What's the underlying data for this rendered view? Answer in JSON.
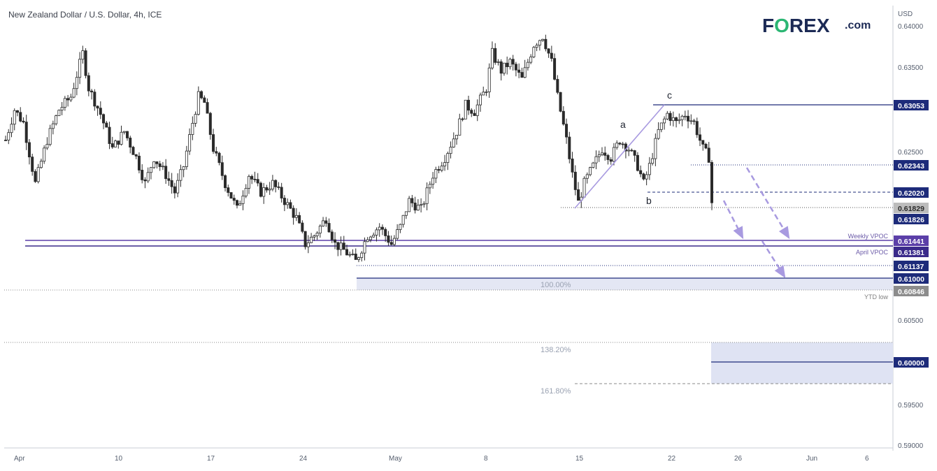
{
  "chart_data": {
    "type": "candlestick",
    "title": "New Zealand Dollar / U.S. Dollar, 4h, ICE",
    "currency": "USD",
    "brand": {
      "logo": "FOREX",
      "suffix": ".com",
      "accent_color": "#2bb673",
      "text_color": "#1c2a55"
    },
    "y_range": [
      0.59,
      0.641
    ],
    "y_ticks": [
      "0.64000",
      "0.63500",
      "0.62500",
      "0.60500",
      "0.59500",
      "0.59000"
    ],
    "x_ticks": [
      "Apr",
      "10",
      "17",
      "24",
      "May",
      "8",
      "15",
      "22",
      "26",
      "Jun",
      "6"
    ],
    "price_path": [
      [
        0,
        0.6255
      ],
      [
        3,
        0.629
      ],
      [
        6,
        0.6275
      ],
      [
        10,
        0.6205
      ],
      [
        14,
        0.6255
      ],
      [
        18,
        0.629
      ],
      [
        22,
        0.6305
      ],
      [
        26,
        0.6355
      ],
      [
        28,
        0.6315
      ],
      [
        32,
        0.6285
      ],
      [
        36,
        0.6245
      ],
      [
        40,
        0.6265
      ],
      [
        44,
        0.6235
      ],
      [
        47,
        0.6205
      ],
      [
        50,
        0.6235
      ],
      [
        54,
        0.6215
      ],
      [
        57,
        0.6195
      ],
      [
        60,
        0.6225
      ],
      [
        63,
        0.6275
      ],
      [
        65,
        0.6305
      ],
      [
        67,
        0.6298
      ],
      [
        70,
        0.6245
      ],
      [
        74,
        0.6205
      ],
      [
        78,
        0.6175
      ],
      [
        82,
        0.6215
      ],
      [
        86,
        0.6195
      ],
      [
        90,
        0.6205
      ],
      [
        94,
        0.6185
      ],
      [
        98,
        0.6165
      ],
      [
        101,
        0.6135
      ],
      [
        104,
        0.6145
      ],
      [
        108,
        0.6165
      ],
      [
        111,
        0.6135
      ],
      [
        114,
        0.6128
      ],
      [
        118,
        0.6115
      ],
      [
        122,
        0.6145
      ],
      [
        126,
        0.6155
      ],
      [
        130,
        0.6135
      ],
      [
        133,
        0.6155
      ],
      [
        136,
        0.6185
      ],
      [
        140,
        0.6175
      ],
      [
        144,
        0.6215
      ],
      [
        148,
        0.6235
      ],
      [
        152,
        0.6265
      ],
      [
        155,
        0.6295
      ],
      [
        158,
        0.6288
      ],
      [
        162,
        0.6315
      ],
      [
        164,
        0.6355
      ],
      [
        167,
        0.6335
      ],
      [
        170,
        0.6345
      ],
      [
        174,
        0.6325
      ],
      [
        178,
        0.6365
      ],
      [
        181,
        0.6375
      ],
      [
        184,
        0.6345
      ],
      [
        186,
        0.6305
      ],
      [
        189,
        0.6255
      ],
      [
        191,
        0.6215
      ],
      [
        193,
        0.6183
      ],
      [
        195,
        0.6205
      ],
      [
        198,
        0.6225
      ],
      [
        201,
        0.6245
      ],
      [
        204,
        0.6235
      ],
      [
        207,
        0.6255
      ],
      [
        210,
        0.6245
      ],
      [
        213,
        0.6225
      ],
      [
        215,
        0.6205
      ],
      [
        217,
        0.6225
      ],
      [
        220,
        0.6265
      ],
      [
        223,
        0.6285
      ],
      [
        226,
        0.6275
      ],
      [
        229,
        0.6285
      ],
      [
        232,
        0.6275
      ],
      [
        235,
        0.6245
      ],
      [
        237,
        0.6235
      ],
      [
        238,
        0.6183
      ]
    ],
    "annotations": {
      "a": "a",
      "b": "b",
      "c": "c"
    },
    "fib": {
      "p100": "100.00%",
      "p138": "138.20%",
      "p161": "161.80%"
    },
    "levels": {
      "weekly_vpoc": {
        "label": "Weekly VPOC",
        "price": "0.61441",
        "color": "#5b3fa8"
      },
      "april_vpoc": {
        "label": "April VPOC",
        "price": "0.61381",
        "color": "#3a2a8a"
      },
      "ytd_low": {
        "label": "YTD low",
        "price": "0.60846",
        "color": "#7f7f7f"
      }
    },
    "price_tags": {
      "p63053": "0.63053",
      "p62343": "0.62343",
      "p62020": "0.62020",
      "p61829": "0.61829",
      "p61826": "0.61826",
      "p61137": "0.61137",
      "p61000": "0.61000",
      "p60000": "0.60000"
    },
    "colors": {
      "navy": "#1d2b7a",
      "bull_fill": "#ffffff",
      "candle": "#2a2a2a",
      "zone": "#dfe3f3",
      "arrow": "#a89ae0"
    }
  }
}
